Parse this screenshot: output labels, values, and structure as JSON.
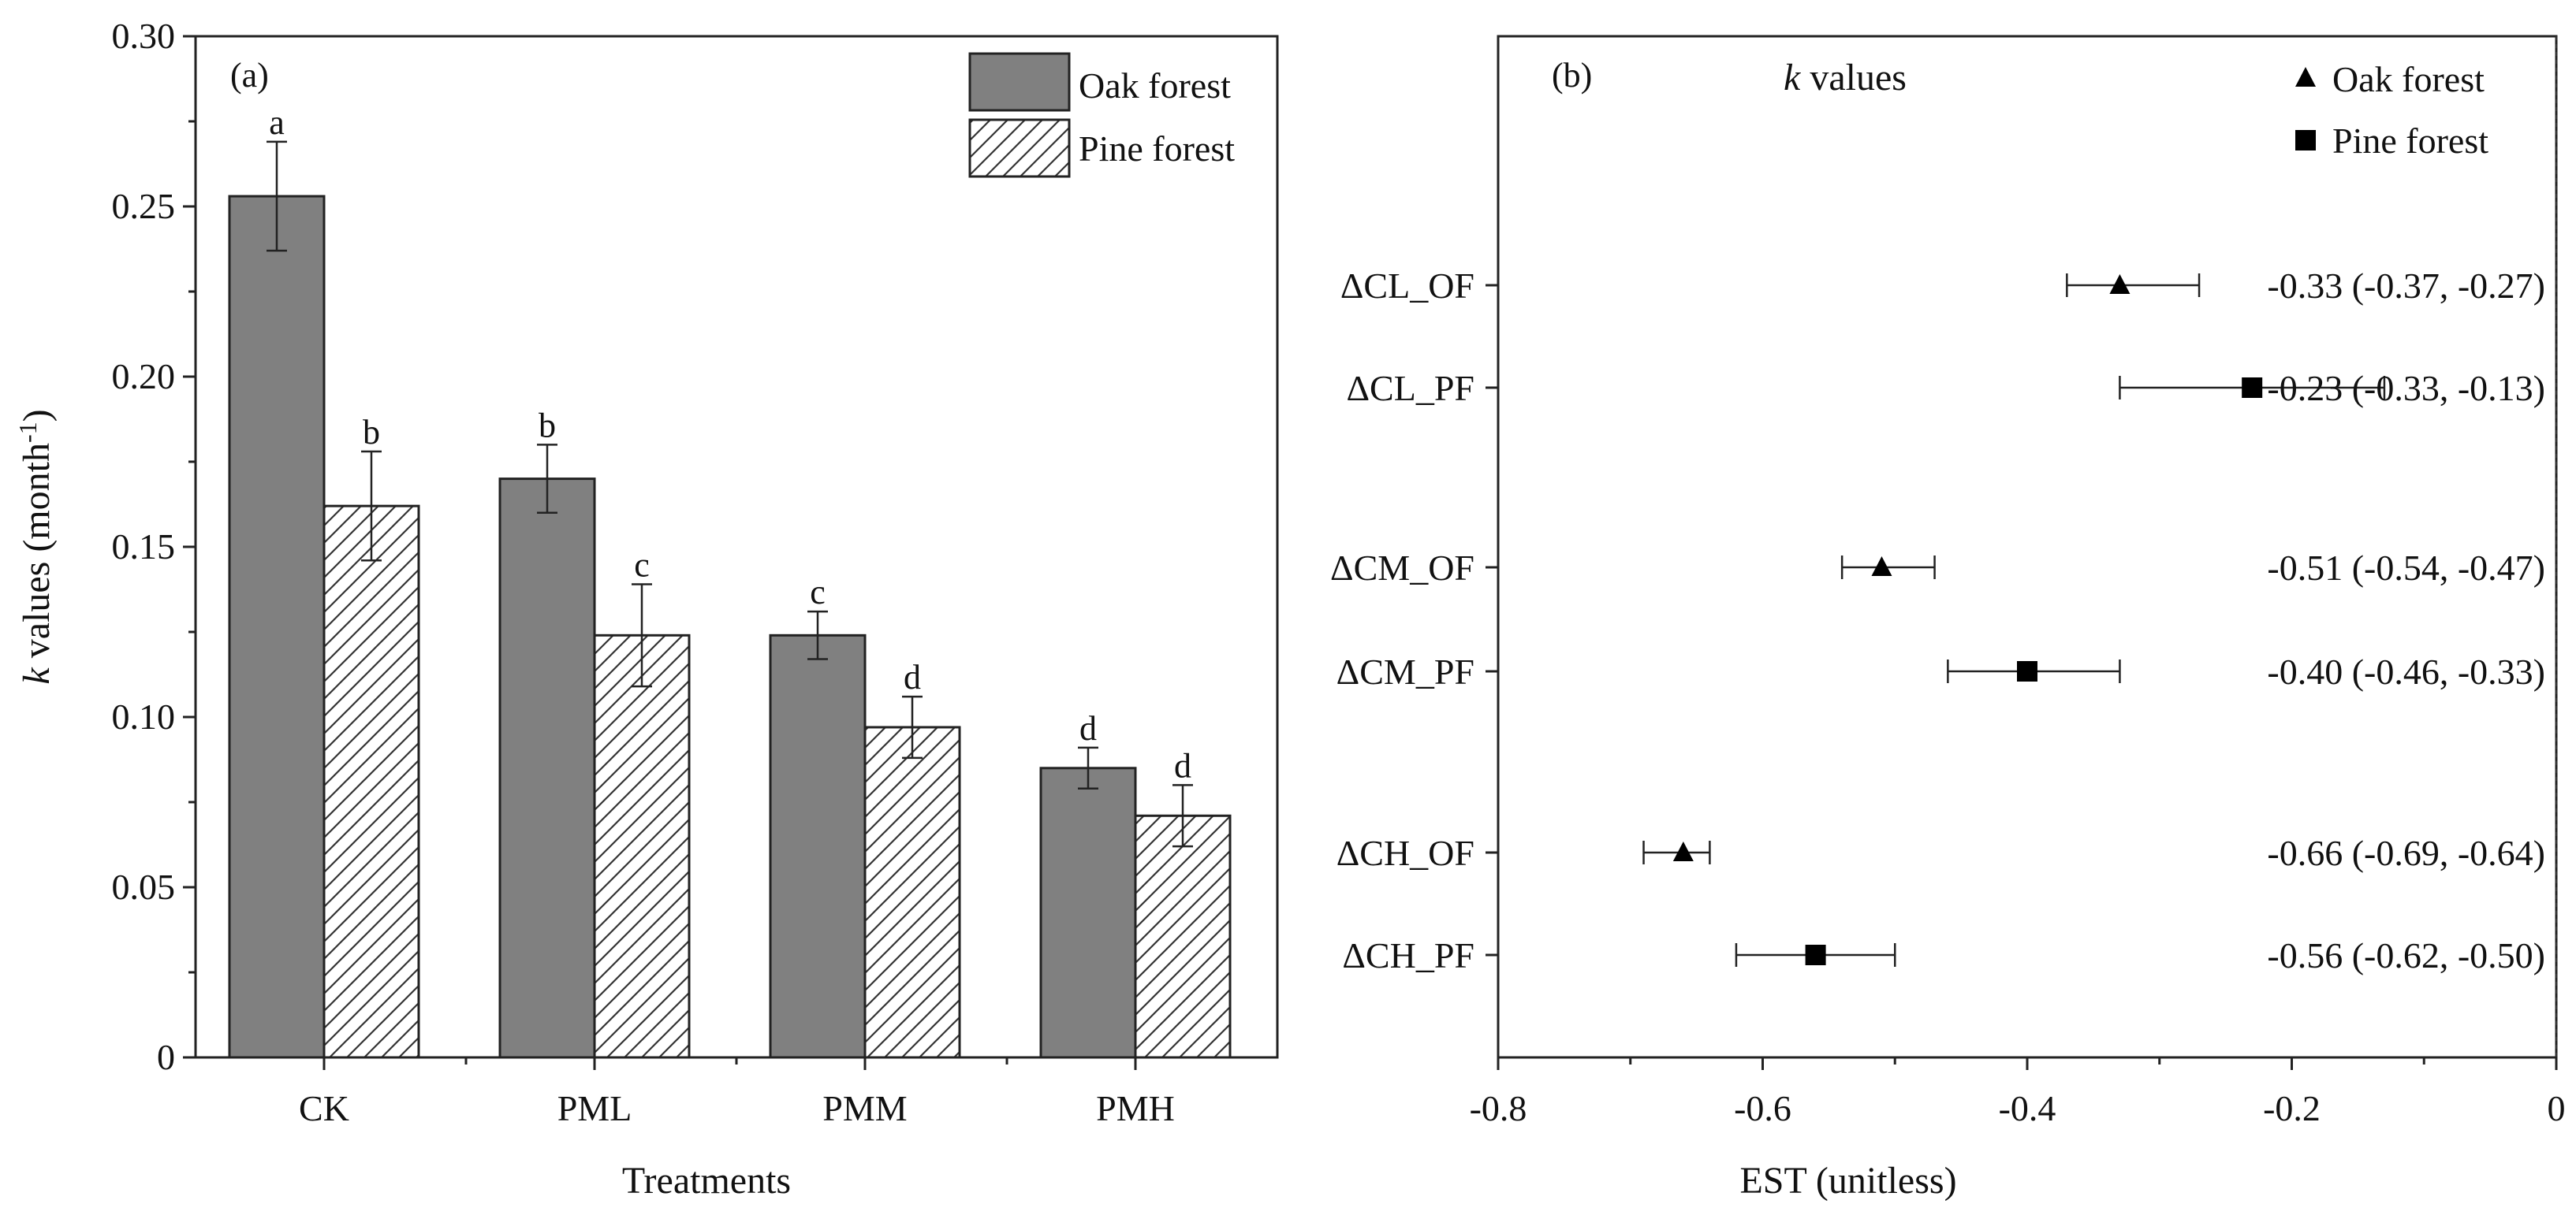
{
  "chart_data": [
    {
      "type": "bar",
      "panel_label": "(a)",
      "categories": [
        "CK",
        "PML",
        "PMM",
        "PMH"
      ],
      "series": [
        {
          "name": "Oak forest",
          "values": [
            0.253,
            0.17,
            0.124,
            0.085
          ],
          "errors": [
            0.016,
            0.01,
            0.007,
            0.006
          ],
          "letters": [
            "a",
            "b",
            "c",
            "d"
          ],
          "fill": "#808080",
          "pattern": "solid"
        },
        {
          "name": "Pine forest",
          "values": [
            0.162,
            0.124,
            0.097,
            0.071
          ],
          "errors": [
            0.016,
            0.015,
            0.009,
            0.009
          ],
          "letters": [
            "b",
            "c",
            "d",
            "d"
          ],
          "fill": "#ffffff",
          "pattern": "hatch"
        }
      ],
      "xlabel": "Treatments",
      "ylabel_italic": "k",
      "ylabel_rest": " values (month",
      "ylabel_sup": "-1",
      "ylabel_close": ")",
      "ylim": [
        0,
        0.3
      ],
      "yticks": [
        0,
        0.05,
        0.1,
        0.15,
        0.2,
        0.25,
        0.3
      ],
      "ytick_labels": [
        "0",
        "0.05",
        "0.10",
        "0.15",
        "0.20",
        "0.25",
        "0.30"
      ],
      "legend_position": "top-right"
    },
    {
      "type": "scatter",
      "panel_label": "(b)",
      "title_italic": "k",
      "title_rest": " values",
      "xlabel": "EST (unitless)",
      "xlim": [
        -0.8,
        0.0
      ],
      "xticks": [
        -0.8,
        -0.6,
        -0.4,
        -0.2,
        0
      ],
      "xtick_labels": [
        "-0.8",
        "-0.6",
        "-0.4",
        "-0.2",
        "0"
      ],
      "reference_line": 0,
      "legend": [
        {
          "name": "Oak forest",
          "marker": "triangle"
        },
        {
          "name": "Pine forest",
          "marker": "square"
        }
      ],
      "points": [
        {
          "label": "ΔCL_OF",
          "value": -0.33,
          "low": -0.37,
          "high": -0.27,
          "marker": "triangle",
          "annotation": "-0.33 (-0.37, -0.27)"
        },
        {
          "label": "ΔCL_PF",
          "value": -0.23,
          "low": -0.33,
          "high": -0.13,
          "marker": "square",
          "annotation": "-0.23 (-0.33, -0.13)"
        },
        {
          "label": "ΔCM_OF",
          "value": -0.51,
          "low": -0.54,
          "high": -0.47,
          "marker": "triangle",
          "annotation": "-0.51 (-0.54, -0.47)"
        },
        {
          "label": "ΔCM_PF",
          "value": -0.4,
          "low": -0.46,
          "high": -0.33,
          "marker": "square",
          "annotation": "-0.40 (-0.46, -0.33)"
        },
        {
          "label": "ΔCH_OF",
          "value": -0.66,
          "low": -0.69,
          "high": -0.64,
          "marker": "triangle",
          "annotation": "-0.66 (-0.69, -0.64)"
        },
        {
          "label": "ΔCH_PF",
          "value": -0.56,
          "low": -0.62,
          "high": -0.5,
          "marker": "square",
          "annotation": "-0.56 (-0.62, -0.50)"
        }
      ]
    }
  ]
}
